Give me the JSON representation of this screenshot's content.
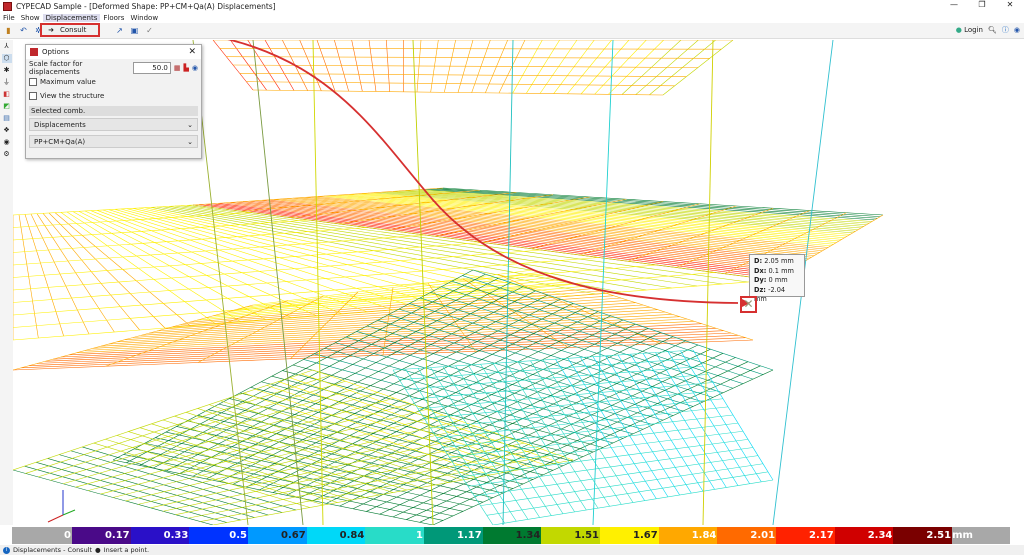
{
  "window": {
    "title": "CYPECAD Sample - [Deformed Shape: PP+CM+Qa(A) Displacements]",
    "min": "—",
    "max": "❐",
    "close": "✕"
  },
  "menu": [
    "File",
    "Show",
    "Displacements",
    "Floors",
    "Window"
  ],
  "consult": {
    "label": "Consult",
    "icon": "arrow-right"
  },
  "right_toolbar": {
    "login": "Login"
  },
  "options": {
    "title": "Options",
    "scale_label": "Scale factor for displacements",
    "scale_value": "50.0",
    "max_value": "Maximum value",
    "view_structure": "View the structure",
    "selected_comb": "Selected comb.",
    "type_select": "Displacements",
    "comb_select": "PP+CM+Qa(A)"
  },
  "tooltip": {
    "D_label": "D:",
    "D": "2.05 mm",
    "Dx_label": "Dx:",
    "Dx": "0.1 mm",
    "Dy_label": "Dy:",
    "Dy": "0 mm",
    "Dz_label": "Dz:",
    "Dz": "-2.04 mm"
  },
  "legend": {
    "unit": "mm",
    "stops": [
      {
        "label": "0",
        "color": "#a8a8a8"
      },
      {
        "label": "0.17",
        "color": "#4a0a88"
      },
      {
        "label": "0.33",
        "color": "#2a10c8"
      },
      {
        "label": "0.5",
        "color": "#0033ff"
      },
      {
        "label": "0.67",
        "color": "#0099ff"
      },
      {
        "label": "0.84",
        "color": "#00d8f8"
      },
      {
        "label": "1",
        "color": "#28dcc8"
      },
      {
        "label": "1.17",
        "color": "#009878"
      },
      {
        "label": "1.34",
        "color": "#007a30"
      },
      {
        "label": "1.51",
        "color": "#c2d800"
      },
      {
        "label": "1.67",
        "color": "#fff000"
      },
      {
        "label": "1.84",
        "color": "#ffa800"
      },
      {
        "label": "2.01",
        "color": "#ff6a00"
      },
      {
        "label": "2.17",
        "color": "#ff2200"
      },
      {
        "label": "2.34",
        "color": "#d00000"
      },
      {
        "label": "2.51",
        "color": "#7a0000"
      }
    ]
  },
  "status": {
    "text": "Displacements - Consult",
    "hint": "Insert a point."
  }
}
